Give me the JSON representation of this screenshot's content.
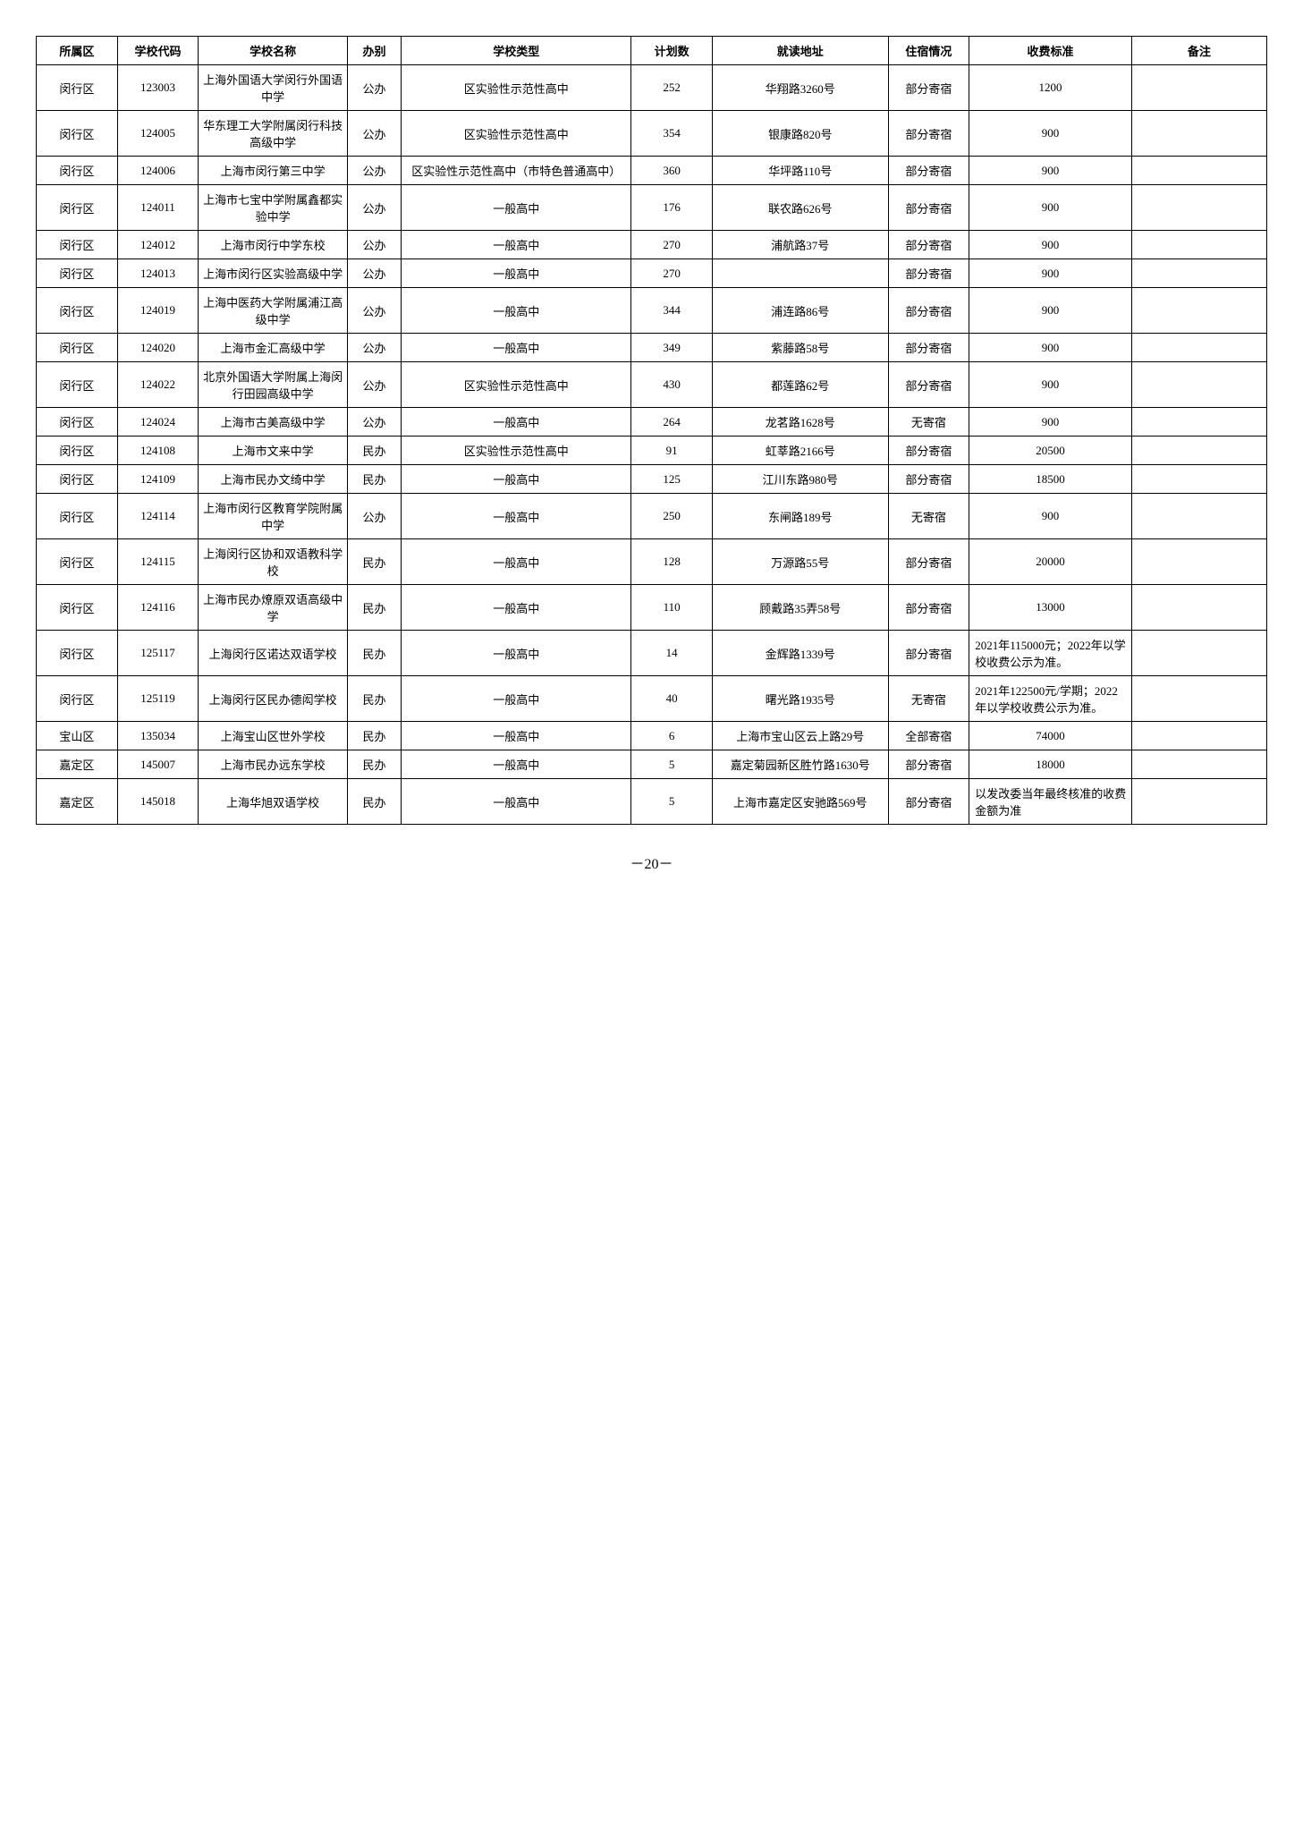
{
  "headers": {
    "district": "所属区",
    "code": "学校代码",
    "name": "学校名称",
    "category": "办别",
    "type": "学校类型",
    "plan": "计划数",
    "address": "就读地址",
    "boarding": "住宿情况",
    "fee": "收费标准",
    "note": "备注"
  },
  "rows": [
    {
      "district": "闵行区",
      "code": "123003",
      "name": "上海外国语大学闵行外国语中学",
      "category": "公办",
      "type": "区实验性示范性高中",
      "plan": "252",
      "address": "华翔路3260号",
      "boarding": "部分寄宿",
      "fee": "1200",
      "note": ""
    },
    {
      "district": "闵行区",
      "code": "124005",
      "name": "华东理工大学附属闵行科技高级中学",
      "category": "公办",
      "type": "区实验性示范性高中",
      "plan": "354",
      "address": "银康路820号",
      "boarding": "部分寄宿",
      "fee": "900",
      "note": ""
    },
    {
      "district": "闵行区",
      "code": "124006",
      "name": "上海市闵行第三中学",
      "category": "公办",
      "type": "区实验性示范性高中（市特色普通高中）",
      "plan": "360",
      "address": "华坪路110号",
      "boarding": "部分寄宿",
      "fee": "900",
      "note": ""
    },
    {
      "district": "闵行区",
      "code": "124011",
      "name": "上海市七宝中学附属鑫都实验中学",
      "category": "公办",
      "type": "一般高中",
      "plan": "176",
      "address": "联农路626号",
      "boarding": "部分寄宿",
      "fee": "900",
      "note": ""
    },
    {
      "district": "闵行区",
      "code": "124012",
      "name": "上海市闵行中学东校",
      "category": "公办",
      "type": "一般高中",
      "plan": "270",
      "address": "浦航路37号",
      "boarding": "部分寄宿",
      "fee": "900",
      "note": ""
    },
    {
      "district": "闵行区",
      "code": "124013",
      "name": "上海市闵行区实验高级中学",
      "category": "公办",
      "type": "一般高中",
      "plan": "270",
      "address": "",
      "boarding": "部分寄宿",
      "fee": "900",
      "note": ""
    },
    {
      "district": "闵行区",
      "code": "124019",
      "name": "上海中医药大学附属浦江高级中学",
      "category": "公办",
      "type": "一般高中",
      "plan": "344",
      "address": "浦连路86号",
      "boarding": "部分寄宿",
      "fee": "900",
      "note": ""
    },
    {
      "district": "闵行区",
      "code": "124020",
      "name": "上海市金汇高级中学",
      "category": "公办",
      "type": "一般高中",
      "plan": "349",
      "address": "紫藤路58号",
      "boarding": "部分寄宿",
      "fee": "900",
      "note": ""
    },
    {
      "district": "闵行区",
      "code": "124022",
      "name": "北京外国语大学附属上海闵行田园高级中学",
      "category": "公办",
      "type": "区实验性示范性高中",
      "plan": "430",
      "address": "都莲路62号",
      "boarding": "部分寄宿",
      "fee": "900",
      "note": ""
    },
    {
      "district": "闵行区",
      "code": "124024",
      "name": "上海市古美高级中学",
      "category": "公办",
      "type": "一般高中",
      "plan": "264",
      "address": "龙茗路1628号",
      "boarding": "无寄宿",
      "fee": "900",
      "note": ""
    },
    {
      "district": "闵行区",
      "code": "124108",
      "name": "上海市文来中学",
      "category": "民办",
      "type": "区实验性示范性高中",
      "plan": "91",
      "address": "虹莘路2166号",
      "boarding": "部分寄宿",
      "fee": "20500",
      "note": ""
    },
    {
      "district": "闵行区",
      "code": "124109",
      "name": "上海市民办文绮中学",
      "category": "民办",
      "type": "一般高中",
      "plan": "125",
      "address": "江川东路980号",
      "boarding": "部分寄宿",
      "fee": "18500",
      "note": ""
    },
    {
      "district": "闵行区",
      "code": "124114",
      "name": "上海市闵行区教育学院附属中学",
      "category": "公办",
      "type": "一般高中",
      "plan": "250",
      "address": "东闸路189号",
      "boarding": "无寄宿",
      "fee": "900",
      "note": ""
    },
    {
      "district": "闵行区",
      "code": "124115",
      "name": "上海闵行区协和双语教科学校",
      "category": "民办",
      "type": "一般高中",
      "plan": "128",
      "address": "万源路55号",
      "boarding": "部分寄宿",
      "fee": "20000",
      "note": ""
    },
    {
      "district": "闵行区",
      "code": "124116",
      "name": "上海市民办燎原双语高级中学",
      "category": "民办",
      "type": "一般高中",
      "plan": "110",
      "address": "顾戴路35弄58号",
      "boarding": "部分寄宿",
      "fee": "13000",
      "note": ""
    },
    {
      "district": "闵行区",
      "code": "125117",
      "name": "上海闵行区诺达双语学校",
      "category": "民办",
      "type": "一般高中",
      "plan": "14",
      "address": "金辉路1339号",
      "boarding": "部分寄宿",
      "fee": "2021年115000元；2022年以学校收费公示为准。",
      "note": "",
      "feeAlign": "left"
    },
    {
      "district": "闵行区",
      "code": "125119",
      "name": "上海闵行区民办德闳学校",
      "category": "民办",
      "type": "一般高中",
      "plan": "40",
      "address": "曙光路1935号",
      "boarding": "无寄宿",
      "fee": "2021年122500元/学期；2022年以学校收费公示为准。",
      "note": "",
      "feeAlign": "left"
    },
    {
      "district": "宝山区",
      "code": "135034",
      "name": "上海宝山区世外学校",
      "category": "民办",
      "type": "一般高中",
      "plan": "6",
      "address": "上海市宝山区云上路29号",
      "boarding": "全部寄宿",
      "fee": "74000",
      "note": ""
    },
    {
      "district": "嘉定区",
      "code": "145007",
      "name": "上海市民办远东学校",
      "category": "民办",
      "type": "一般高中",
      "plan": "5",
      "address": "嘉定菊园新区胜竹路1630号",
      "boarding": "部分寄宿",
      "fee": "18000",
      "note": ""
    },
    {
      "district": "嘉定区",
      "code": "145018",
      "name": "上海华旭双语学校",
      "category": "民办",
      "type": "一般高中",
      "plan": "5",
      "address": "上海市嘉定区安驰路569号",
      "boarding": "部分寄宿",
      "fee": "以发改委当年最终核准的收费金额为准",
      "note": "",
      "feeAlign": "left"
    }
  ],
  "pageNumber": "－20－"
}
